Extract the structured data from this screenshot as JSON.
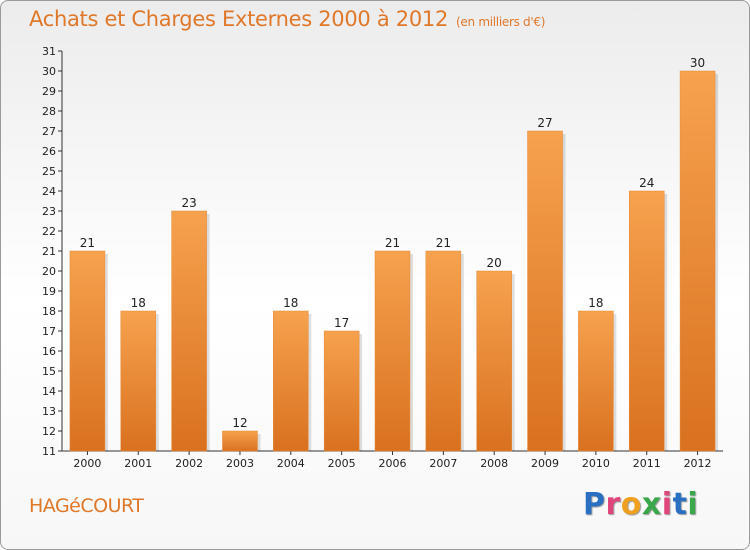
{
  "header": {
    "title": "Achats et Charges Externes 2000 à 2012",
    "subtitle": "(en milliers d'€)"
  },
  "footer": {
    "commune": "HAGéCOURT",
    "logo_letters": [
      "P",
      "r",
      "o",
      "x",
      "i",
      "t",
      "i"
    ],
    "logo_colors": [
      "#2b6fc2",
      "#e0457b",
      "#f0a020",
      "#3aa84a",
      "#e0457b",
      "#2b6fc2",
      "#3aa84a"
    ]
  },
  "chart_data": {
    "type": "bar",
    "categories": [
      "2000",
      "2001",
      "2002",
      "2003",
      "2004",
      "2005",
      "2006",
      "2007",
      "2008",
      "2009",
      "2010",
      "2011",
      "2012"
    ],
    "values": [
      21,
      18,
      23,
      12,
      18,
      17,
      21,
      21,
      20,
      27,
      18,
      24,
      30
    ],
    "title": "Achats et Charges Externes 2000 à 2012",
    "ylim": [
      11,
      31
    ],
    "yticks": [
      11,
      12,
      13,
      14,
      15,
      16,
      17,
      18,
      19,
      20,
      21,
      22,
      23,
      24,
      25,
      26,
      27,
      28,
      29,
      30,
      31
    ],
    "grid": false,
    "bar_color_top": "#f6a24e",
    "bar_color_bottom": "#d9711f"
  }
}
